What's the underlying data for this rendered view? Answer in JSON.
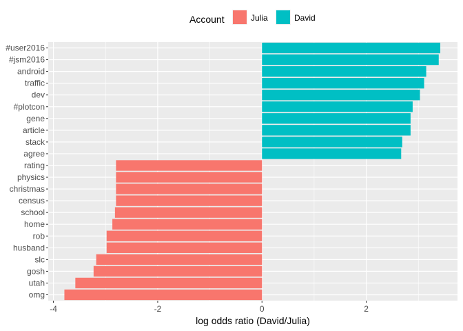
{
  "chart_data": {
    "type": "bar",
    "orientation": "horizontal",
    "title": "",
    "xlabel": "log odds ratio (David/Julia)",
    "ylabel": "",
    "xlim": [
      -4.1,
      3.75
    ],
    "x_ticks": [
      -4,
      -2,
      0,
      2
    ],
    "grid": true,
    "legend": {
      "title": "Account",
      "position": "top",
      "entries": [
        {
          "name": "Julia",
          "color": "#F8766D"
        },
        {
          "name": "David",
          "color": "#00BFC4"
        }
      ]
    },
    "categories": [
      "#user2016",
      "#jsm2016",
      "android",
      "traffic",
      "dev",
      "#plotcon",
      "gene",
      "article",
      "stack",
      "agree",
      "rating",
      "physics",
      "christmas",
      "census",
      "school",
      "home",
      "rob",
      "husband",
      "slc",
      "gosh",
      "utah",
      "omg"
    ],
    "values": [
      3.42,
      3.39,
      3.15,
      3.11,
      3.03,
      2.89,
      2.85,
      2.85,
      2.69,
      2.67,
      -2.8,
      -2.8,
      -2.8,
      -2.8,
      -2.82,
      -2.87,
      -2.98,
      -2.98,
      -3.18,
      -3.23,
      -3.58,
      -3.79
    ],
    "series_of_category": [
      "David",
      "David",
      "David",
      "David",
      "David",
      "David",
      "David",
      "David",
      "David",
      "David",
      "Julia",
      "Julia",
      "Julia",
      "Julia",
      "Julia",
      "Julia",
      "Julia",
      "Julia",
      "Julia",
      "Julia",
      "Julia",
      "Julia"
    ]
  }
}
